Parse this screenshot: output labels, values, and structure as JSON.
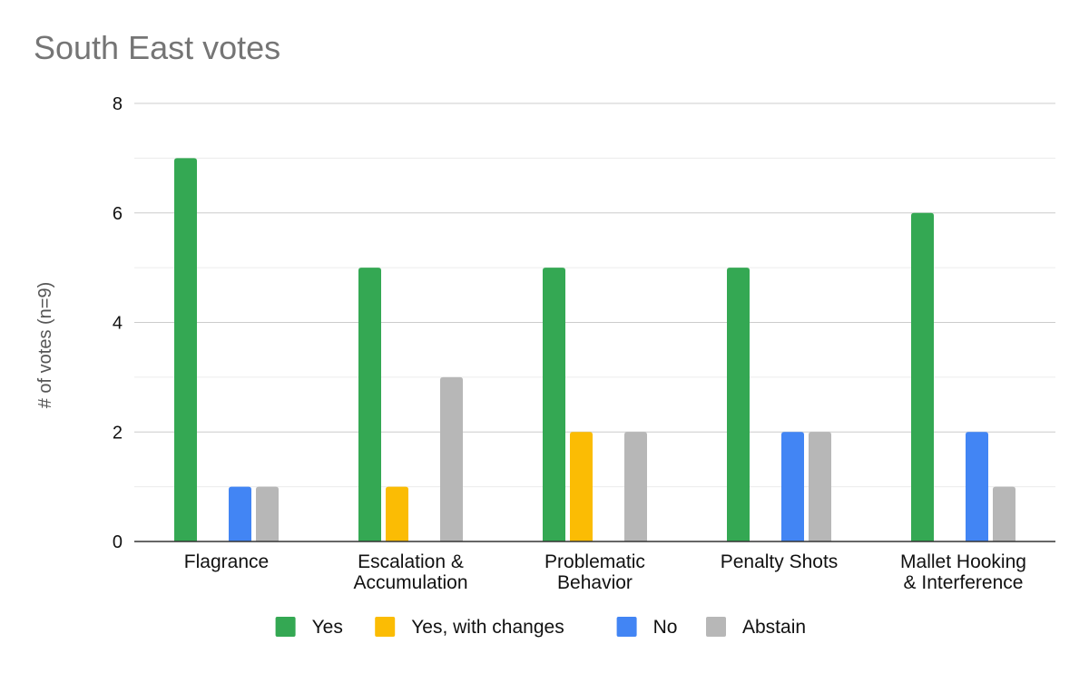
{
  "chart_data": {
    "type": "bar",
    "title": "South East votes",
    "xlabel": "",
    "ylabel": "# of votes (n=9)",
    "ylim": [
      0,
      8
    ],
    "yticks": [
      "0",
      "2",
      "4",
      "6",
      "8"
    ],
    "minor_gridlines": true,
    "legend_position": "bottom",
    "categories": [
      [
        "Flagrance"
      ],
      [
        "Escalation &",
        "Accumulation"
      ],
      [
        "Problematic",
        "Behavior"
      ],
      [
        "Penalty Shots"
      ],
      [
        "Mallet Hooking",
        "& Interference"
      ]
    ],
    "series": [
      {
        "name": "Yes",
        "color": "#34a853",
        "values": [
          7,
          5,
          5,
          5,
          6
        ]
      },
      {
        "name": "Yes, with changes",
        "color": "#fbbc04",
        "values": [
          0,
          1,
          2,
          0,
          0
        ]
      },
      {
        "name": "No",
        "color": "#4285f4",
        "values": [
          1,
          0,
          0,
          2,
          2
        ]
      },
      {
        "name": "Abstain",
        "color": "#b7b7b7",
        "values": [
          1,
          3,
          2,
          2,
          1
        ]
      }
    ]
  }
}
